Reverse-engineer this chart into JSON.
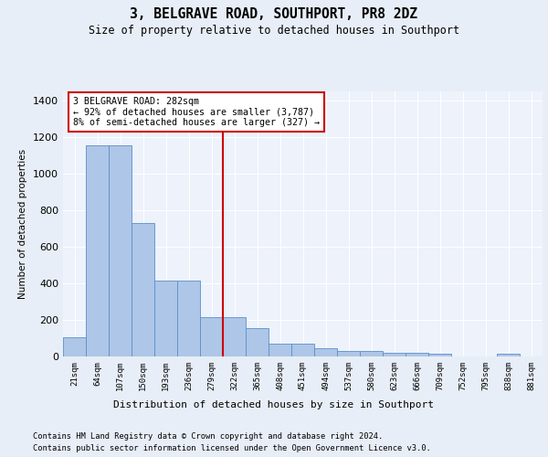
{
  "title": "3, BELGRAVE ROAD, SOUTHPORT, PR8 2DZ",
  "subtitle": "Size of property relative to detached houses in Southport",
  "xlabel": "Distribution of detached houses by size in Southport",
  "ylabel": "Number of detached properties",
  "bar_labels": [
    "21sqm",
    "64sqm",
    "107sqm",
    "150sqm",
    "193sqm",
    "236sqm",
    "279sqm",
    "322sqm",
    "365sqm",
    "408sqm",
    "451sqm",
    "494sqm",
    "537sqm",
    "580sqm",
    "623sqm",
    "666sqm",
    "709sqm",
    "752sqm",
    "795sqm",
    "838sqm",
    "881sqm"
  ],
  "bar_values": [
    105,
    1155,
    1155,
    730,
    415,
    415,
    215,
    215,
    155,
    70,
    70,
    47,
    30,
    30,
    18,
    18,
    15,
    0,
    0,
    15,
    0
  ],
  "bar_color": "#aec6e8",
  "bar_edge_color": "#5b8fc9",
  "vline_color": "#cc0000",
  "annotation_title": "3 BELGRAVE ROAD: 282sqm",
  "annotation_line1": "← 92% of detached houses are smaller (3,787)",
  "annotation_line2": "8% of semi-detached houses are larger (327) →",
  "annotation_box_color": "#cc0000",
  "ylim": [
    0,
    1450
  ],
  "yticks": [
    0,
    200,
    400,
    600,
    800,
    1000,
    1200,
    1400
  ],
  "footer1": "Contains HM Land Registry data © Crown copyright and database right 2024.",
  "footer2": "Contains public sector information licensed under the Open Government Licence v3.0.",
  "bg_color": "#e8eef7",
  "plot_bg_color": "#edf2fb"
}
